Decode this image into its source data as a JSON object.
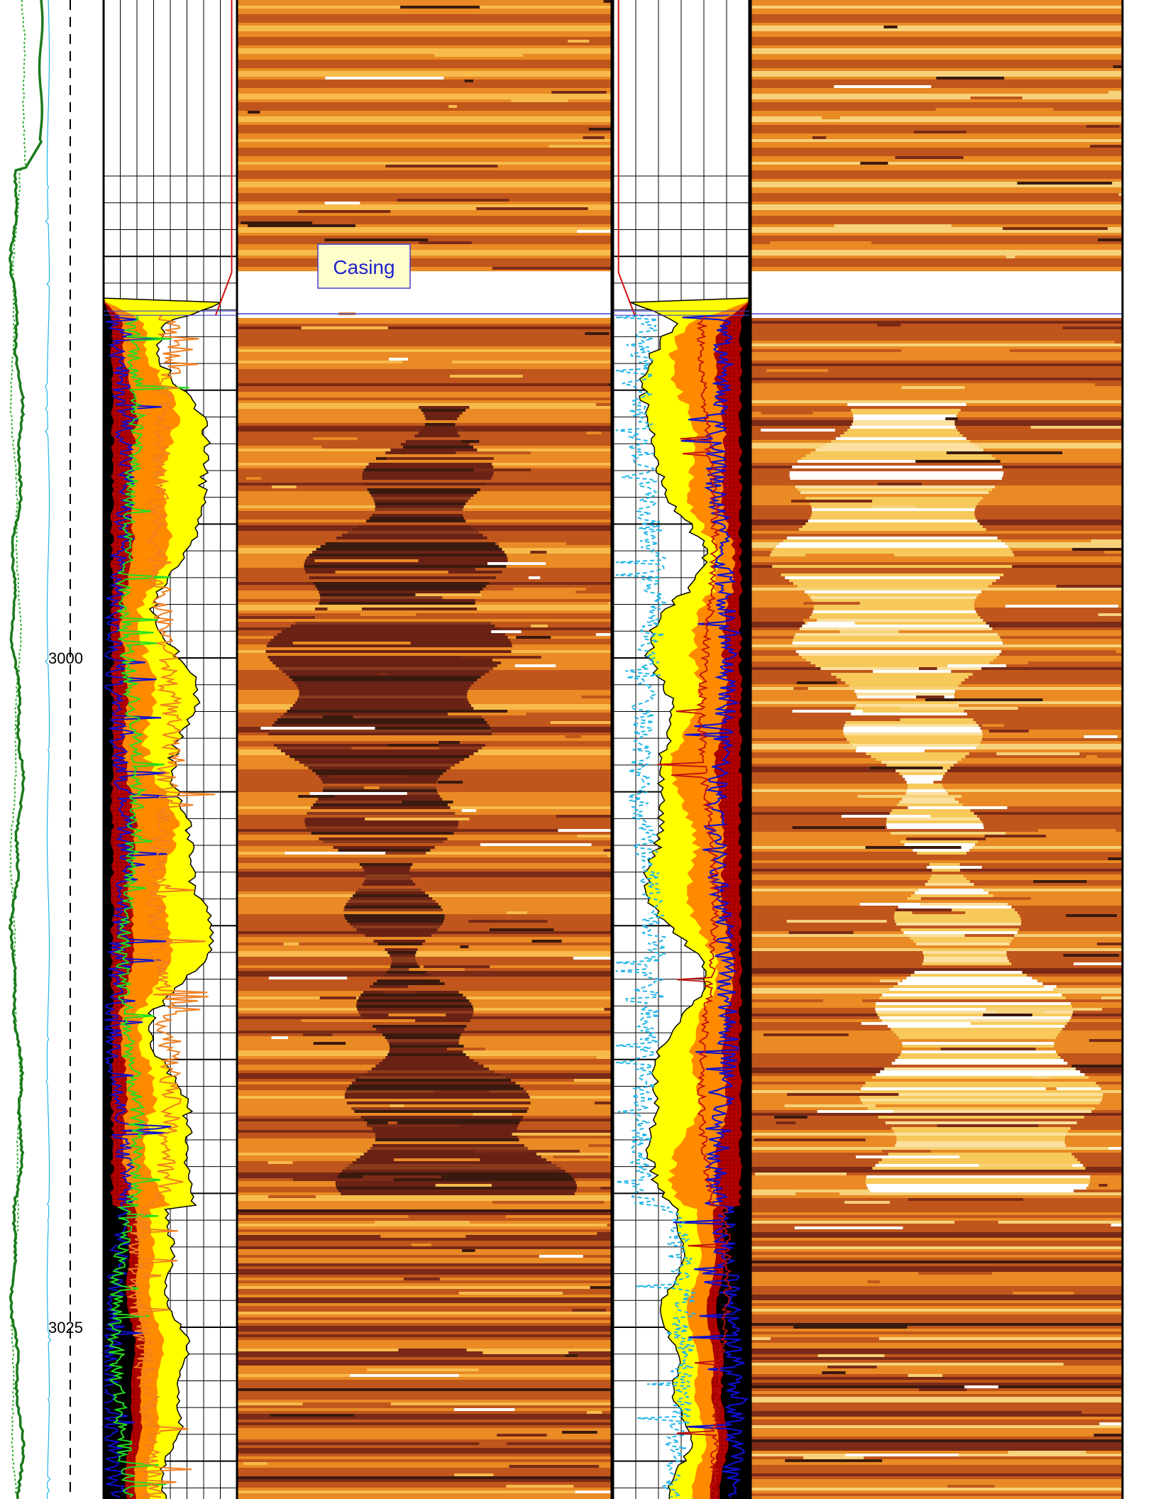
{
  "chart_data": {
    "type": "well-log",
    "title": "",
    "depth_axis": {
      "labels": [
        "3000",
        "3025"
      ],
      "values": [
        3000,
        3025
      ],
      "range": [
        2982,
        3031
      ]
    },
    "annotations": [
      {
        "text": "Casing",
        "depth": 2985.5
      }
    ],
    "casing_shoe_depth": 2987.2,
    "zones": [
      {
        "name": "upper",
        "from": 2987.2,
        "to": 3020.5
      },
      {
        "name": "lower",
        "from": 3020.5,
        "to": 3031
      }
    ],
    "tracks": [
      {
        "name": "gamma-ray-track",
        "curves": [
          "green solid",
          "green dotted",
          "cyan thin"
        ]
      },
      {
        "name": "depth-track"
      },
      {
        "name": "caliper-track-1",
        "fills": [
          "yellow",
          "orange",
          "red",
          "black"
        ],
        "curves": [
          "blue",
          "green",
          "orange"
        ]
      },
      {
        "name": "image-track-1",
        "colormap": [
          "#3a1a0e",
          "#7a2a16",
          "#c0561c",
          "#e98a24",
          "#f7bb4c",
          "#ffffff"
        ]
      },
      {
        "name": "caliper-track-2",
        "fills": [
          "yellow",
          "orange",
          "red",
          "black"
        ],
        "curves": [
          "blue",
          "cyan dashed",
          "red"
        ]
      },
      {
        "name": "image-track-2",
        "colormap": [
          "#3a1a0e",
          "#7a2a16",
          "#c0561c",
          "#e98a24",
          "#f7d27a",
          "#ffffff"
        ]
      }
    ],
    "colors": {
      "gamma": "#1a7a1a",
      "gamma_dotted": "#2fae2f",
      "cyan": "#22b5e8",
      "blue": "#1010d0",
      "green": "#22dd22",
      "orange_curve": "#f08020",
      "fill_yellow": "#ffff00",
      "fill_orange": "#ff8a00",
      "fill_red": "#b00000",
      "fill_black": "#000000"
    }
  }
}
